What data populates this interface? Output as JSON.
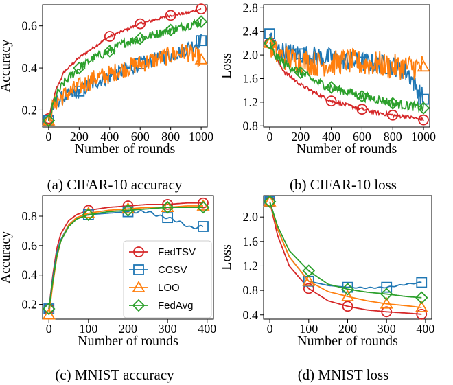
{
  "legend": [
    "FedTSV",
    "CGSV",
    "LOO",
    "FedAvg"
  ],
  "colors": {
    "FedTSV": "#d62728",
    "CGSV": "#1f77b4",
    "LOO": "#ff7f0e",
    "FedAvg": "#2ca02c"
  },
  "chart_data": [
    {
      "type": "line",
      "caption": "(a) CIFAR-10 accuracy",
      "xlabel": "Number of rounds",
      "ylabel": "Accuracy",
      "xlim": [
        -40,
        1040
      ],
      "ylim": [
        0.12,
        0.7
      ],
      "xticks": [
        0,
        200,
        400,
        600,
        800,
        1000
      ],
      "yticks": [
        0.2,
        0.4,
        0.6
      ],
      "ytick_labels": [
        "0.2",
        "0.4",
        "0.6"
      ],
      "noisy": true,
      "series": [
        {
          "name": "FedTSV",
          "x": [
            0,
            20,
            50,
            100,
            200,
            300,
            400,
            500,
            600,
            700,
            800,
            900,
            1000
          ],
          "y": [
            0.16,
            0.22,
            0.3,
            0.38,
            0.45,
            0.5,
            0.55,
            0.58,
            0.61,
            0.63,
            0.65,
            0.66,
            0.68
          ],
          "markers": [
            0,
            400,
            600,
            800,
            1000
          ]
        },
        {
          "name": "CGSV",
          "x": [
            0,
            20,
            50,
            100,
            200,
            300,
            400,
            500,
            600,
            700,
            800,
            900,
            1000
          ],
          "y": [
            0.15,
            0.2,
            0.24,
            0.26,
            0.29,
            0.33,
            0.36,
            0.39,
            0.42,
            0.44,
            0.46,
            0.49,
            0.53
          ],
          "markers": [
            0,
            200,
            600,
            1000
          ]
        },
        {
          "name": "LOO",
          "x": [
            0,
            20,
            50,
            100,
            200,
            300,
            400,
            500,
            600,
            700,
            800,
            900,
            1000
          ],
          "y": [
            0.15,
            0.2,
            0.24,
            0.27,
            0.31,
            0.35,
            0.37,
            0.4,
            0.42,
            0.44,
            0.46,
            0.48,
            0.44
          ],
          "markers": [
            0,
            1000
          ]
        },
        {
          "name": "FedAvg",
          "x": [
            0,
            20,
            50,
            100,
            200,
            300,
            400,
            500,
            600,
            700,
            800,
            900,
            1000
          ],
          "y": [
            0.15,
            0.2,
            0.27,
            0.33,
            0.4,
            0.45,
            0.48,
            0.52,
            0.54,
            0.56,
            0.58,
            0.6,
            0.62
          ],
          "markers": [
            0,
            200,
            400,
            600,
            800,
            1000
          ]
        }
      ]
    },
    {
      "type": "line",
      "caption": "(b) CIFAR-10 loss",
      "xlabel": "Number of rounds",
      "ylabel": "Loss",
      "xlim": [
        -40,
        1040
      ],
      "ylim": [
        0.78,
        2.85
      ],
      "xticks": [
        0,
        200,
        400,
        600,
        800,
        1000
      ],
      "yticks": [
        0.8,
        1.2,
        1.6,
        2.0,
        2.4,
        2.8
      ],
      "ytick_labels": [
        "0.8",
        "1.2",
        "1.6",
        "2.0",
        "2.4",
        "2.8"
      ],
      "noisy": true,
      "series": [
        {
          "name": "FedTSV",
          "x": [
            0,
            20,
            50,
            100,
            200,
            300,
            400,
            500,
            600,
            700,
            800,
            900,
            1000
          ],
          "y": [
            2.2,
            2.05,
            1.9,
            1.7,
            1.5,
            1.35,
            1.22,
            1.15,
            1.08,
            1.02,
            0.98,
            0.95,
            0.9
          ],
          "markers": [
            0,
            400,
            600,
            800,
            1000
          ]
        },
        {
          "name": "CGSV",
          "x": [
            0,
            20,
            50,
            100,
            200,
            300,
            400,
            500,
            600,
            700,
            800,
            900,
            1000
          ],
          "y": [
            2.36,
            2.2,
            2.1,
            2.05,
            2.02,
            1.98,
            1.95,
            1.9,
            1.88,
            1.85,
            1.82,
            1.7,
            1.25
          ],
          "markers": [
            0,
            200,
            600,
            1000
          ]
        },
        {
          "name": "LOO",
          "x": [
            0,
            20,
            50,
            100,
            200,
            300,
            400,
            500,
            600,
            700,
            800,
            900,
            1000
          ],
          "y": [
            2.2,
            2.1,
            2.0,
            1.95,
            1.9,
            1.85,
            1.85,
            1.9,
            1.85,
            1.85,
            1.8,
            1.8,
            1.8
          ],
          "markers": [
            0,
            1000
          ]
        },
        {
          "name": "FedAvg",
          "x": [
            0,
            20,
            50,
            100,
            200,
            300,
            400,
            500,
            600,
            700,
            800,
            900,
            1000
          ],
          "y": [
            2.2,
            2.05,
            1.95,
            1.85,
            1.7,
            1.55,
            1.45,
            1.38,
            1.3,
            1.25,
            1.18,
            1.14,
            1.1
          ],
          "markers": [
            0,
            200,
            400,
            600,
            800,
            1000
          ]
        }
      ]
    },
    {
      "type": "line",
      "caption": "(c) MNIST accuracy",
      "xlabel": "Number of rounds",
      "ylabel": "Accuracy",
      "xlim": [
        -16,
        416
      ],
      "ylim": [
        0.1,
        0.94
      ],
      "xticks": [
        0,
        100,
        200,
        300,
        400
      ],
      "yticks": [
        0.2,
        0.4,
        0.6,
        0.8
      ],
      "ytick_labels": [
        "0.2",
        "0.4",
        "0.6",
        "0.8"
      ],
      "noisy": false,
      "series": [
        {
          "name": "FedTSV",
          "x": [
            0,
            10,
            20,
            30,
            50,
            70,
            100,
            150,
            200,
            250,
            300,
            350,
            390
          ],
          "y": [
            0.17,
            0.4,
            0.58,
            0.68,
            0.77,
            0.81,
            0.84,
            0.86,
            0.87,
            0.88,
            0.88,
            0.89,
            0.89
          ],
          "markers": [
            0,
            100,
            200,
            300,
            390
          ]
        },
        {
          "name": "CGSV",
          "x": [
            0,
            10,
            20,
            30,
            50,
            70,
            100,
            150,
            200,
            250,
            280,
            300,
            330,
            360,
            390
          ],
          "y": [
            0.17,
            0.38,
            0.55,
            0.64,
            0.74,
            0.79,
            0.81,
            0.82,
            0.83,
            0.83,
            0.8,
            0.79,
            0.76,
            0.72,
            0.73
          ],
          "markers": [
            0,
            100,
            200,
            300,
            390
          ]
        },
        {
          "name": "LOO",
          "x": [
            0,
            10,
            20,
            30,
            50,
            70,
            100,
            150,
            200,
            250,
            300,
            350,
            390
          ],
          "y": [
            0.13,
            0.34,
            0.52,
            0.63,
            0.74,
            0.79,
            0.82,
            0.84,
            0.85,
            0.86,
            0.86,
            0.87,
            0.87
          ],
          "markers": [
            0,
            100,
            200,
            300,
            390
          ]
        },
        {
          "name": "FedAvg",
          "x": [
            0,
            10,
            20,
            30,
            50,
            70,
            100,
            150,
            200,
            250,
            300,
            350,
            390
          ],
          "y": [
            0.17,
            0.36,
            0.53,
            0.63,
            0.73,
            0.78,
            0.81,
            0.83,
            0.84,
            0.85,
            0.86,
            0.86,
            0.86
          ],
          "markers": [
            0,
            100,
            200,
            300,
            390
          ]
        }
      ]
    },
    {
      "type": "line",
      "caption": "(d) MNIST loss",
      "xlabel": "Number of rounds",
      "ylabel": "Loss",
      "xlim": [
        -16,
        416
      ],
      "ylim": [
        0.33,
        2.35
      ],
      "xticks": [
        0,
        100,
        200,
        300,
        400
      ],
      "yticks": [
        0.4,
        0.8,
        1.2,
        1.6,
        2.0
      ],
      "ytick_labels": [
        "0.4",
        "0.8",
        "1.2",
        "1.6",
        "2.0"
      ],
      "noisy": false,
      "series": [
        {
          "name": "FedTSV",
          "x": [
            0,
            20,
            50,
            100,
            150,
            200,
            250,
            300,
            350,
            390
          ],
          "y": [
            2.25,
            1.7,
            1.2,
            0.83,
            0.63,
            0.54,
            0.48,
            0.45,
            0.43,
            0.41
          ],
          "markers": [
            0,
            100,
            200,
            300,
            390
          ]
        },
        {
          "name": "CGSV",
          "x": [
            0,
            20,
            50,
            100,
            150,
            200,
            250,
            300,
            350,
            390
          ],
          "y": [
            2.25,
            1.8,
            1.35,
            0.95,
            0.88,
            0.85,
            0.84,
            0.85,
            0.9,
            0.93
          ],
          "markers": [
            0,
            100,
            200,
            300,
            390
          ]
        },
        {
          "name": "LOO",
          "x": [
            0,
            20,
            50,
            100,
            150,
            200,
            250,
            300,
            350,
            390
          ],
          "y": [
            2.25,
            1.8,
            1.35,
            0.95,
            0.78,
            0.7,
            0.63,
            0.58,
            0.55,
            0.52
          ],
          "markers": [
            0,
            100,
            200,
            300,
            390
          ]
        },
        {
          "name": "FedAvg",
          "x": [
            0,
            20,
            50,
            100,
            150,
            200,
            250,
            300,
            350,
            390
          ],
          "y": [
            2.25,
            1.85,
            1.45,
            1.12,
            0.9,
            0.82,
            0.77,
            0.74,
            0.7,
            0.68
          ],
          "markers": [
            0,
            100,
            200,
            300,
            390
          ]
        }
      ]
    }
  ]
}
